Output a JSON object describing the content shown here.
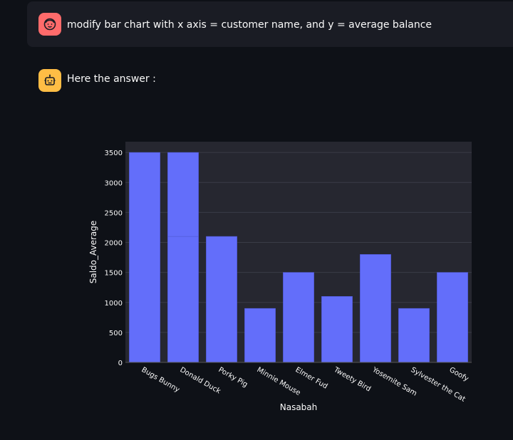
{
  "user_message": {
    "text": "modify bar chart with x axis = customer name, and y = average balance",
    "avatar_icon": "face-smile-icon",
    "avatar_color": "#ff6b6b"
  },
  "assistant_message": {
    "text": "Here the answer :",
    "avatar_icon": "robot-icon",
    "avatar_color": "#ffbd45"
  },
  "chart_data": {
    "type": "bar",
    "title": "",
    "xlabel": "Nasabah",
    "ylabel": "Saldo_Average",
    "categories": [
      "Bugs Bunny",
      "Donald Duck",
      "Porky Pig",
      "Minnie Mouse",
      "Elmer Fud",
      "Tweety Bird",
      "Yosemite Sam",
      "Sylvester the Cat",
      "Goofy"
    ],
    "values": [
      3500,
      3500,
      2100,
      900,
      1500,
      1100,
      1800,
      900,
      1500
    ],
    "stacked_segments": {
      "Donald Duck": [
        2100,
        1400
      ]
    },
    "yticks": [
      0,
      500,
      1000,
      1500,
      2000,
      2500,
      3000,
      3500
    ],
    "ylim": [
      0,
      3680
    ],
    "grid": true,
    "bar_color": "#636efa",
    "plot_bg": "#262730"
  }
}
